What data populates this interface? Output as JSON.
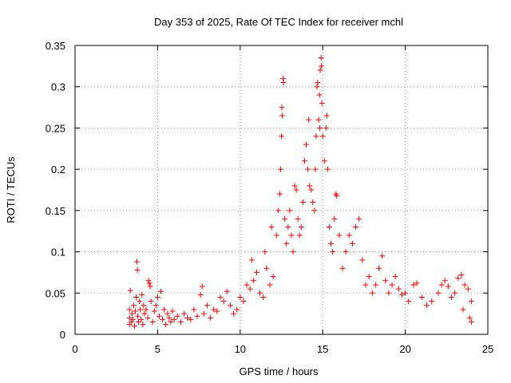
{
  "chart_data": {
    "type": "scatter",
    "title": "Day 353 of 2025, Rate Of TEC Index for receiver mchl",
    "xlabel": "GPS time / hours",
    "ylabel": "ROTI / TECUs",
    "xlim": [
      0,
      25
    ],
    "ylim": [
      0,
      0.35
    ],
    "xticks": [
      "0",
      "5",
      "10",
      "15",
      "20",
      "25"
    ],
    "xtick_values": [
      0,
      5,
      10,
      15,
      20,
      25
    ],
    "yticks": [
      "0",
      "0.05",
      "0.1",
      "0.15",
      "0.2",
      "0.25",
      "0.3",
      "0.35"
    ],
    "ytick_values": [
      0,
      0.05,
      0.1,
      0.15,
      0.2,
      0.25,
      0.3,
      0.35
    ],
    "grid": true,
    "marker": "+",
    "color": "#ff0000",
    "series": [
      {
        "name": "ROTI",
        "points": [
          [
            3.3,
            0.012
          ],
          [
            3.3,
            0.02
          ],
          [
            3.3,
            0.03
          ],
          [
            3.35,
            0.053
          ],
          [
            3.4,
            0.015
          ],
          [
            3.45,
            0.025
          ],
          [
            3.5,
            0.018
          ],
          [
            3.55,
            0.035
          ],
          [
            3.6,
            0.01
          ],
          [
            3.65,
            0.028
          ],
          [
            3.7,
            0.045
          ],
          [
            3.75,
            0.088
          ],
          [
            3.78,
            0.078
          ],
          [
            3.8,
            0.022
          ],
          [
            3.85,
            0.015
          ],
          [
            3.9,
            0.04
          ],
          [
            3.95,
            0.03
          ],
          [
            4.0,
            0.018
          ],
          [
            4.05,
            0.048
          ],
          [
            4.1,
            0.012
          ],
          [
            4.15,
            0.035
          ],
          [
            4.2,
            0.025
          ],
          [
            4.3,
            0.03
          ],
          [
            4.4,
            0.02
          ],
          [
            4.45,
            0.065
          ],
          [
            4.5,
            0.062
          ],
          [
            4.55,
            0.058
          ],
          [
            4.6,
            0.04
          ],
          [
            4.7,
            0.015
          ],
          [
            4.8,
            0.028
          ],
          [
            4.9,
            0.035
          ],
          [
            5.0,
            0.045
          ],
          [
            5.1,
            0.022
          ],
          [
            5.2,
            0.052
          ],
          [
            5.3,
            0.018
          ],
          [
            5.4,
            0.03
          ],
          [
            5.5,
            0.012
          ],
          [
            5.6,
            0.025
          ],
          [
            5.7,
            0.02
          ],
          [
            5.8,
            0.015
          ],
          [
            5.9,
            0.028
          ],
          [
            6.0,
            0.018
          ],
          [
            6.2,
            0.022
          ],
          [
            6.4,
            0.015
          ],
          [
            6.6,
            0.025
          ],
          [
            6.8,
            0.02
          ],
          [
            7.0,
            0.018
          ],
          [
            7.2,
            0.03
          ],
          [
            7.4,
            0.022
          ],
          [
            7.6,
            0.048
          ],
          [
            7.7,
            0.058
          ],
          [
            7.8,
            0.025
          ],
          [
            8.0,
            0.035
          ],
          [
            8.2,
            0.02
          ],
          [
            8.4,
            0.03
          ],
          [
            8.6,
            0.028
          ],
          [
            8.8,
            0.045
          ],
          [
            9.0,
            0.04
          ],
          [
            9.2,
            0.052
          ],
          [
            9.4,
            0.035
          ],
          [
            9.6,
            0.025
          ],
          [
            9.8,
            0.03
          ],
          [
            10.0,
            0.045
          ],
          [
            10.2,
            0.04
          ],
          [
            10.4,
            0.06
          ],
          [
            10.6,
            0.055
          ],
          [
            10.7,
            0.09
          ],
          [
            10.8,
            0.065
          ],
          [
            11.0,
            0.075
          ],
          [
            11.2,
            0.05
          ],
          [
            11.4,
            0.045
          ],
          [
            11.5,
            0.1
          ],
          [
            11.6,
            0.08
          ],
          [
            11.8,
            0.06
          ],
          [
            11.9,
            0.13
          ],
          [
            12.0,
            0.07
          ],
          [
            12.2,
            0.12
          ],
          [
            12.3,
            0.15
          ],
          [
            12.4,
            0.17
          ],
          [
            12.45,
            0.2
          ],
          [
            12.5,
            0.24
          ],
          [
            12.52,
            0.275
          ],
          [
            12.55,
            0.265
          ],
          [
            12.6,
            0.31
          ],
          [
            12.62,
            0.305
          ],
          [
            12.7,
            0.14
          ],
          [
            12.8,
            0.11
          ],
          [
            12.9,
            0.13
          ],
          [
            13.0,
            0.15
          ],
          [
            13.1,
            0.12
          ],
          [
            13.2,
            0.1
          ],
          [
            13.3,
            0.18
          ],
          [
            13.4,
            0.175
          ],
          [
            13.5,
            0.14
          ],
          [
            13.6,
            0.12
          ],
          [
            13.7,
            0.13
          ],
          [
            13.8,
            0.16
          ],
          [
            13.9,
            0.21
          ],
          [
            14.0,
            0.23
          ],
          [
            14.1,
            0.2
          ],
          [
            14.15,
            0.26
          ],
          [
            14.2,
            0.18
          ],
          [
            14.3,
            0.175
          ],
          [
            14.4,
            0.16
          ],
          [
            14.5,
            0.15
          ],
          [
            14.55,
            0.2
          ],
          [
            14.6,
            0.24
          ],
          [
            14.65,
            0.3
          ],
          [
            14.7,
            0.305
          ],
          [
            14.75,
            0.26
          ],
          [
            14.8,
            0.29
          ],
          [
            14.82,
            0.25
          ],
          [
            14.85,
            0.32
          ],
          [
            14.9,
            0.335
          ],
          [
            14.92,
            0.325
          ],
          [
            14.95,
            0.28
          ],
          [
            15.0,
            0.24
          ],
          [
            15.1,
            0.21
          ],
          [
            15.2,
            0.25
          ],
          [
            15.25,
            0.265
          ],
          [
            15.3,
            0.2
          ],
          [
            15.4,
            0.13
          ],
          [
            15.5,
            0.11
          ],
          [
            15.6,
            0.1
          ],
          [
            15.7,
            0.14
          ],
          [
            15.8,
            0.17
          ],
          [
            15.85,
            0.168
          ],
          [
            16.0,
            0.12
          ],
          [
            16.2,
            0.08
          ],
          [
            16.4,
            0.1
          ],
          [
            16.6,
            0.12
          ],
          [
            16.8,
            0.11
          ],
          [
            17.0,
            0.13
          ],
          [
            17.2,
            0.14
          ],
          [
            17.4,
            0.09
          ],
          [
            17.6,
            0.06
          ],
          [
            17.8,
            0.07
          ],
          [
            18.0,
            0.05
          ],
          [
            18.2,
            0.06
          ],
          [
            18.4,
            0.08
          ],
          [
            18.6,
            0.095
          ],
          [
            18.8,
            0.065
          ],
          [
            19.0,
            0.05
          ],
          [
            19.2,
            0.06
          ],
          [
            19.4,
            0.07
          ],
          [
            19.6,
            0.055
          ],
          [
            19.8,
            0.048
          ],
          [
            20.0,
            0.05
          ],
          [
            20.2,
            0.04
          ],
          [
            20.5,
            0.06
          ],
          [
            20.7,
            0.062
          ],
          [
            21.0,
            0.045
          ],
          [
            21.3,
            0.035
          ],
          [
            21.6,
            0.04
          ],
          [
            22.0,
            0.05
          ],
          [
            22.2,
            0.06
          ],
          [
            22.4,
            0.065
          ],
          [
            22.6,
            0.058
          ],
          [
            22.8,
            0.045
          ],
          [
            23.0,
            0.05
          ],
          [
            23.2,
            0.068
          ],
          [
            23.4,
            0.072
          ],
          [
            23.6,
            0.06
          ],
          [
            23.8,
            0.055
          ],
          [
            24.0,
            0.04
          ],
          [
            24.0,
            0.015
          ],
          [
            23.9,
            0.02
          ],
          [
            23.5,
            0.03
          ]
        ]
      }
    ]
  }
}
